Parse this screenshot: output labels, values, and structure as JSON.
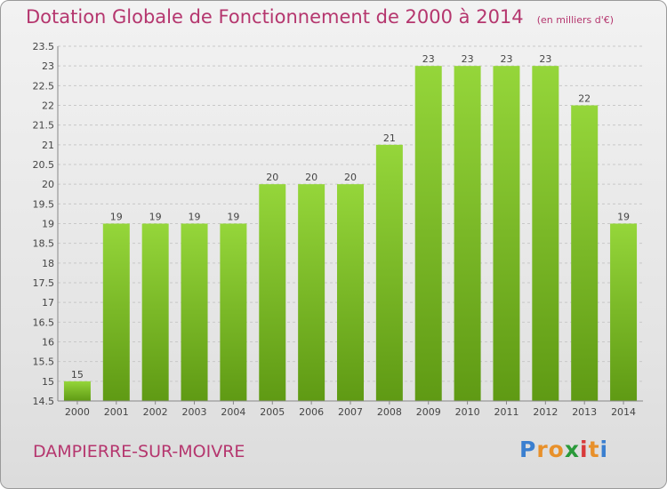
{
  "chart_data": {
    "type": "bar",
    "title": "Dotation Globale de Fonctionnement de 2000 à 2014",
    "subtitle": "(en milliers d'€)",
    "categories": [
      "2000",
      "2001",
      "2002",
      "2003",
      "2004",
      "2005",
      "2006",
      "2007",
      "2008",
      "2009",
      "2010",
      "2011",
      "2012",
      "2013",
      "2014"
    ],
    "values": [
      15,
      19,
      19,
      19,
      19,
      20,
      20,
      20,
      21,
      23,
      23,
      23,
      23,
      22,
      19
    ],
    "data_labels": [
      "15",
      "19",
      "19",
      "19",
      "19",
      "20",
      "20",
      "20",
      "21",
      "23",
      "23",
      "23",
      "23",
      "22",
      "19"
    ],
    "ylim": [
      14.5,
      23.5
    ],
    "yticks": [
      14.5,
      15,
      15.5,
      16,
      16.5,
      17,
      17.5,
      18,
      18.5,
      19,
      19.5,
      20,
      20.5,
      21,
      21.5,
      22,
      22.5,
      23,
      23.5
    ],
    "ytick_labels": [
      "14.5",
      "15",
      "15.5",
      "16",
      "16.5",
      "17",
      "17.5",
      "18",
      "18.5",
      "19",
      "19.5",
      "20",
      "20.5",
      "21",
      "21.5",
      "22",
      "22.5",
      "23",
      "23.5"
    ],
    "grid": true,
    "bar_color": "#7cc22a"
  },
  "footer": {
    "commune": "DAMPIERRE-SUR-MOIVRE",
    "logo_letters": [
      "P",
      "r",
      "o",
      "x",
      "i",
      "t",
      "i"
    ],
    "logo_colors": [
      "#3a7fd0",
      "#e8902a",
      "#e8902a",
      "#2a9a3a",
      "#d83a3a",
      "#e8902a",
      "#3a7fd0"
    ]
  }
}
